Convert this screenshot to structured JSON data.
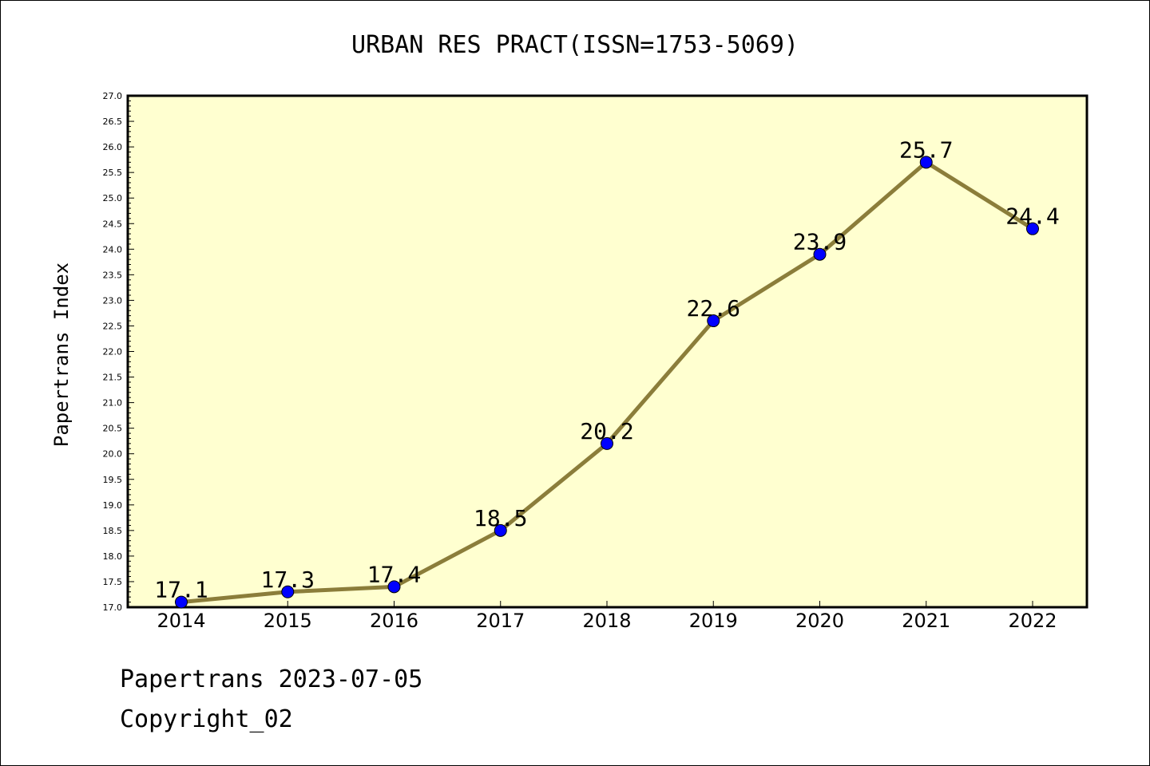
{
  "chart_data": {
    "type": "line",
    "title": "URBAN RES PRACT(ISSN=1753-5069)",
    "xlabel": "",
    "ylabel": "Papertrans Index",
    "categories": [
      "2014",
      "2015",
      "2016",
      "2017",
      "2018",
      "2019",
      "2020",
      "2021",
      "2022"
    ],
    "series": [
      {
        "values": [
          17.1,
          17.3,
          17.4,
          18.5,
          20.2,
          22.6,
          23.9,
          25.7,
          24.4
        ],
        "labels": [
          "17.1",
          "17.3",
          "17.4",
          "18.5",
          "20.2",
          "22.6",
          "23.9",
          "25.7",
          "24.4"
        ]
      }
    ],
    "ylim": [
      17.0,
      27.0
    ],
    "ytick_step": 0.5,
    "grid": false,
    "colors": {
      "plot_background": "#ffffd0",
      "line": "#8b7d3a",
      "marker": "#0000ff"
    }
  },
  "footer": {
    "date_line": "Papertrans 2023-07-05",
    "copyright_line": "Copyright_02"
  }
}
